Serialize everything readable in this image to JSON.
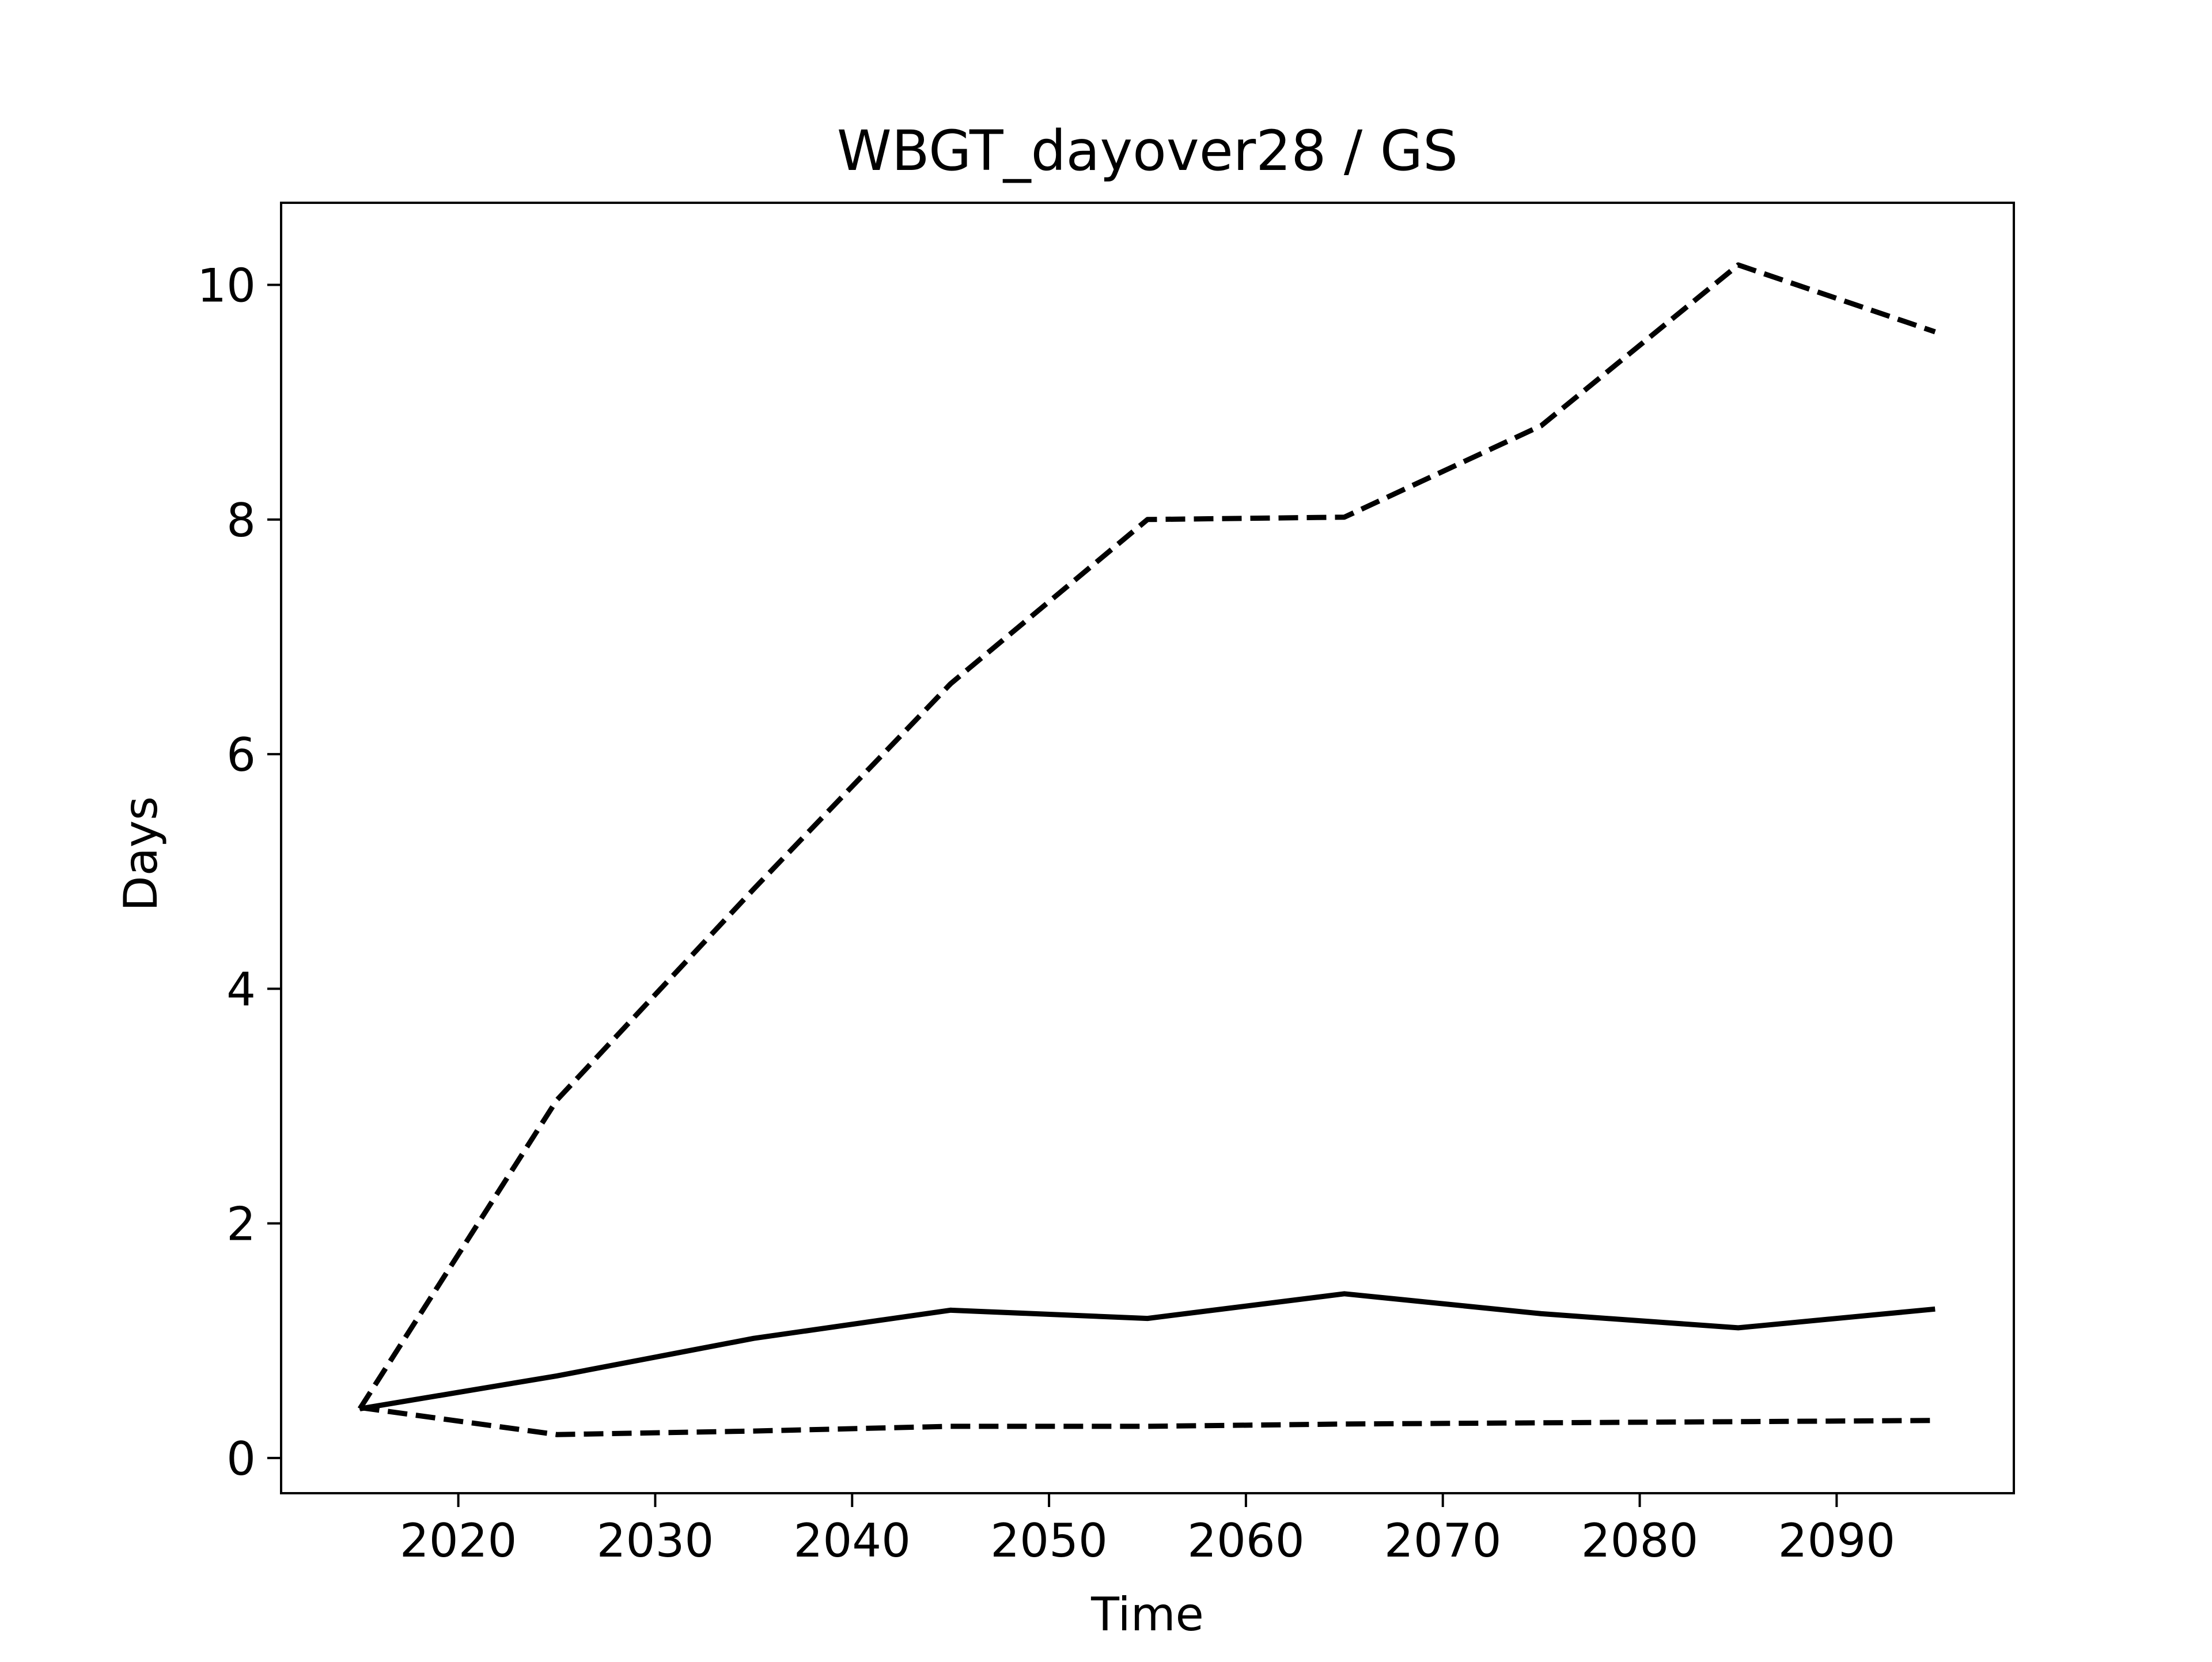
{
  "chart_data": {
    "type": "line",
    "title": "WBGT_dayover28 / GS",
    "xlabel": "Time",
    "ylabel": "Days",
    "xlim": [
      2011,
      2099
    ],
    "ylim": [
      -0.3,
      10.7
    ],
    "xticks": [
      2020,
      2030,
      2040,
      2050,
      2060,
      2070,
      2080,
      2090
    ],
    "yticks": [
      0,
      2,
      4,
      6,
      8,
      10
    ],
    "grid": false,
    "legend": "none",
    "x": [
      2015,
      2025,
      2035,
      2045,
      2055,
      2065,
      2075,
      2085,
      2095
    ],
    "series": [
      {
        "style": "dashed",
        "color": "#000000",
        "values": [
          0.42,
          3.05,
          4.85,
          6.6,
          8.0,
          8.02,
          8.8,
          10.17,
          9.6
        ]
      },
      {
        "style": "solid",
        "color": "#000000",
        "values": [
          0.42,
          0.7,
          1.02,
          1.26,
          1.19,
          1.4,
          1.23,
          1.11,
          1.27
        ]
      },
      {
        "style": "dashed",
        "color": "#000000",
        "values": [
          0.43,
          0.2,
          0.23,
          0.27,
          0.27,
          0.29,
          0.3,
          0.31,
          0.32
        ]
      }
    ]
  }
}
